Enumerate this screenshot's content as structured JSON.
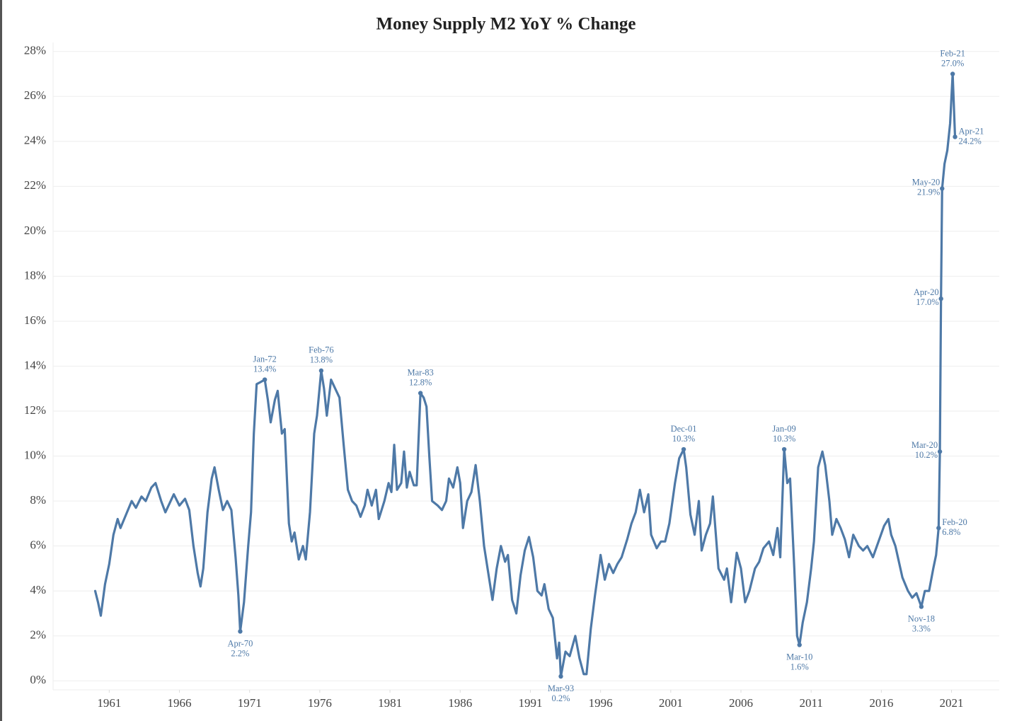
{
  "chart_data": {
    "type": "line",
    "title": "Money Supply M2 YoY % Change",
    "x": [
      1960.0,
      1960.2,
      1960.4,
      1960.7,
      1961.0,
      1961.3,
      1961.6,
      1961.8,
      1962.2,
      1962.6,
      1962.9,
      1963.3,
      1963.6,
      1964.0,
      1964.3,
      1964.7,
      1965.0,
      1965.3,
      1965.6,
      1966.0,
      1966.4,
      1966.7,
      1967.0,
      1967.3,
      1967.5,
      1967.7,
      1968.0,
      1968.3,
      1968.5,
      1968.8,
      1969.1,
      1969.4,
      1969.7,
      1970.0,
      1970.2,
      1970.33,
      1970.6,
      1970.9,
      1971.1,
      1971.3,
      1971.5,
      1971.8,
      1972.08,
      1972.3,
      1972.5,
      1972.8,
      1973.0,
      1973.3,
      1973.5,
      1973.8,
      1974.0,
      1974.2,
      1974.5,
      1974.8,
      1975.0,
      1975.3,
      1975.6,
      1975.8,
      1976.1,
      1976.3,
      1976.5,
      1976.8,
      1977.1,
      1977.4,
      1977.7,
      1978.0,
      1978.3,
      1978.6,
      1978.9,
      1979.2,
      1979.4,
      1979.7,
      1980.0,
      1980.2,
      1980.6,
      1980.9,
      1981.1,
      1981.3,
      1981.5,
      1981.8,
      1982.0,
      1982.2,
      1982.4,
      1982.7,
      1982.9,
      1983.17,
      1983.4,
      1983.6,
      1983.8,
      1984.0,
      1984.4,
      1984.7,
      1985.0,
      1985.2,
      1985.5,
      1985.8,
      1986.0,
      1986.2,
      1986.5,
      1986.8,
      1987.1,
      1987.4,
      1987.7,
      1988.0,
      1988.3,
      1988.6,
      1988.9,
      1989.2,
      1989.4,
      1989.7,
      1990.0,
      1990.3,
      1990.6,
      1990.9,
      1991.2,
      1991.5,
      1991.8,
      1992.0,
      1992.3,
      1992.6,
      1992.9,
      1993.05,
      1993.17,
      1993.5,
      1993.8,
      1994.2,
      1994.5,
      1994.8,
      1995.0,
      1995.3,
      1995.6,
      1996.0,
      1996.3,
      1996.6,
      1996.9,
      1997.2,
      1997.5,
      1997.9,
      1998.2,
      1998.5,
      1998.8,
      1999.1,
      1999.4,
      1999.6,
      2000.0,
      2000.3,
      2000.6,
      2000.9,
      2001.3,
      2001.6,
      2001.92,
      2002.1,
      2002.4,
      2002.7,
      2003.0,
      2003.2,
      2003.5,
      2003.8,
      2004.0,
      2004.4,
      2004.8,
      2005.0,
      2005.3,
      2005.7,
      2006.0,
      2006.3,
      2006.6,
      2007.0,
      2007.3,
      2007.6,
      2008.0,
      2008.3,
      2008.6,
      2008.8,
      2009.08,
      2009.3,
      2009.5,
      2009.8,
      2010.0,
      2010.17,
      2010.4,
      2010.7,
      2011.0,
      2011.2,
      2011.5,
      2011.8,
      2012.0,
      2012.3,
      2012.5,
      2012.8,
      2013.1,
      2013.4,
      2013.7,
      2014.0,
      2014.4,
      2014.7,
      2015.0,
      2015.4,
      2015.8,
      2016.2,
      2016.5,
      2016.7,
      2017.0,
      2017.5,
      2017.9,
      2018.2,
      2018.5,
      2018.85,
      2019.1,
      2019.4,
      2019.7,
      2019.9,
      2020.08,
      2020.17,
      2020.25,
      2020.33,
      2020.5,
      2020.7,
      2020.9,
      2021.08,
      2021.25
    ],
    "series": [
      {
        "color": "#4e79a7",
        "values": [
          4.0,
          3.5,
          2.9,
          4.3,
          5.2,
          6.5,
          7.2,
          6.8,
          7.4,
          8.0,
          7.7,
          8.2,
          8.0,
          8.6,
          8.8,
          8.0,
          7.5,
          7.9,
          8.3,
          7.8,
          8.1,
          7.6,
          6.0,
          4.8,
          4.2,
          5.0,
          7.5,
          9.0,
          9.5,
          8.5,
          7.6,
          8.0,
          7.6,
          5.5,
          3.8,
          2.2,
          3.5,
          6.0,
          7.5,
          11.0,
          13.2,
          13.3,
          13.4,
          12.5,
          11.5,
          12.5,
          12.9,
          11.0,
          11.2,
          7.0,
          6.2,
          6.6,
          5.4,
          6.0,
          5.4,
          7.5,
          11.0,
          11.8,
          13.8,
          13.0,
          11.8,
          13.4,
          13.0,
          12.6,
          10.5,
          8.5,
          8.0,
          7.8,
          7.3,
          7.8,
          8.5,
          7.8,
          8.5,
          7.2,
          8.0,
          8.8,
          8.4,
          10.5,
          8.5,
          8.8,
          10.2,
          8.6,
          9.3,
          8.7,
          8.7,
          12.8,
          12.6,
          12.2,
          10.0,
          8.0,
          7.8,
          7.6,
          8.0,
          9.0,
          8.6,
          9.5,
          8.8,
          6.8,
          8.0,
          8.4,
          9.6,
          8.0,
          6.0,
          4.8,
          3.6,
          5.0,
          6.0,
          5.3,
          5.6,
          3.6,
          3.0,
          4.7,
          5.8,
          6.4,
          5.5,
          4.0,
          3.8,
          4.3,
          3.2,
          2.8,
          1.0,
          1.7,
          0.2,
          1.3,
          1.1,
          2.0,
          1.0,
          0.3,
          0.3,
          2.3,
          3.8,
          5.6,
          4.5,
          5.2,
          4.8,
          5.2,
          5.5,
          6.3,
          7.0,
          7.5,
          8.5,
          7.5,
          8.3,
          6.5,
          5.9,
          6.2,
          6.2,
          7.0,
          8.8,
          9.9,
          10.3,
          9.5,
          7.4,
          6.5,
          8.0,
          5.8,
          6.5,
          7.0,
          8.2,
          5.0,
          4.5,
          5.0,
          3.5,
          5.7,
          5.0,
          3.5,
          4.0,
          5.0,
          5.3,
          5.9,
          6.2,
          5.6,
          6.8,
          5.5,
          10.3,
          8.8,
          9.0,
          5.0,
          2.0,
          1.6,
          2.6,
          3.5,
          5.0,
          6.2,
          9.5,
          10.2,
          9.6,
          8.0,
          6.5,
          7.2,
          6.8,
          6.3,
          5.5,
          6.5,
          6.0,
          5.8,
          6.0,
          5.5,
          6.2,
          6.9,
          7.2,
          6.5,
          6.0,
          4.6,
          4.0,
          3.7,
          3.9,
          3.3,
          4.0,
          4.0,
          5.0,
          5.6,
          6.8,
          10.2,
          17.0,
          21.9,
          23.0,
          23.6,
          24.8,
          27.0,
          24.2
        ]
      }
    ],
    "xlim": [
      1957,
      2024.4
    ],
    "xticks": [
      1961,
      1966,
      1971,
      1976,
      1981,
      1986,
      1991,
      1996,
      2001,
      2006,
      2011,
      2016,
      2021
    ],
    "ylim": [
      -0.4,
      28.4
    ],
    "yticks": [
      {
        "value": 0,
        "label": "0%"
      },
      {
        "value": 2,
        "label": "2%"
      },
      {
        "value": 4,
        "label": "4%"
      },
      {
        "value": 6,
        "label": "6%"
      },
      {
        "value": 8,
        "label": "8%"
      },
      {
        "value": 10,
        "label": "10%"
      },
      {
        "value": 12,
        "label": "12%"
      },
      {
        "value": 14,
        "label": "14%"
      },
      {
        "value": 16,
        "label": "16%"
      },
      {
        "value": 18,
        "label": "18%"
      },
      {
        "value": 20,
        "label": "20%"
      },
      {
        "value": 22,
        "label": "22%"
      },
      {
        "value": 24,
        "label": "24%"
      },
      {
        "value": 26,
        "label": "26%"
      },
      {
        "value": 28,
        "label": "28%"
      }
    ],
    "grid": true,
    "annotations": [
      {
        "date": "Apr-70",
        "text": "2.2%",
        "x": 1970.33,
        "y": 2.2,
        "position": "below"
      },
      {
        "date": "Jan-72",
        "text": "13.4%",
        "x": 1972.08,
        "y": 13.4,
        "position": "above"
      },
      {
        "date": "Feb-76",
        "text": "13.8%",
        "x": 1976.1,
        "y": 13.8,
        "position": "above"
      },
      {
        "date": "Mar-83",
        "text": "12.8%",
        "x": 1983.17,
        "y": 12.8,
        "position": "above"
      },
      {
        "date": "Mar-93",
        "text": "0.2%",
        "x": 1993.17,
        "y": 0.2,
        "position": "below"
      },
      {
        "date": "Dec-01",
        "text": "10.3%",
        "x": 2001.92,
        "y": 10.3,
        "position": "above"
      },
      {
        "date": "Jan-09",
        "text": "10.3%",
        "x": 2009.08,
        "y": 10.3,
        "position": "above"
      },
      {
        "date": "Mar-10",
        "text": "1.6%",
        "x": 2010.17,
        "y": 1.6,
        "position": "below"
      },
      {
        "date": "Nov-18",
        "text": "3.3%",
        "x": 2018.85,
        "y": 3.3,
        "position": "below"
      },
      {
        "date": "Feb-20",
        "text": "6.8%",
        "x": 2020.08,
        "y": 6.8,
        "position": "right"
      },
      {
        "date": "Mar-20",
        "text": "10.2%",
        "x": 2020.17,
        "y": 10.2,
        "position": "left"
      },
      {
        "date": "Apr-20",
        "text": "17.0%",
        "x": 2020.25,
        "y": 17.0,
        "position": "left"
      },
      {
        "date": "May-20",
        "text": "21.9%",
        "x": 2020.33,
        "y": 21.9,
        "position": "left"
      },
      {
        "date": "Feb-21",
        "text": "27.0%",
        "x": 2021.08,
        "y": 27.0,
        "position": "above"
      },
      {
        "date": "Apr-21",
        "text": "24.2%",
        "x": 2021.25,
        "y": 24.2,
        "position": "right"
      }
    ]
  }
}
